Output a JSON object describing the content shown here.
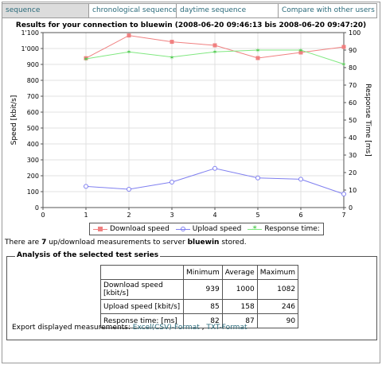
{
  "tabs": [
    {
      "label": "sequence",
      "active": true
    },
    {
      "label": "chronological sequence",
      "active": false
    },
    {
      "label": "daytime sequence",
      "active": false
    },
    {
      "label": "Compare with other users",
      "active": false
    }
  ],
  "chart_data": {
    "type": "line",
    "title": "Results for your connection to bluewin (2008-06-20 09:46:13 bis 2008-06-20 09:47:20)",
    "xlabel": "",
    "ylabel": "Speed [kbit/s]",
    "y2label": "Response Time [ms]",
    "x": [
      1,
      2,
      3,
      4,
      5,
      6,
      7
    ],
    "xlim": [
      0,
      7
    ],
    "ylim": [
      0,
      1100
    ],
    "y2lim": [
      0,
      100
    ],
    "xticks": [
      "0",
      "1",
      "2",
      "3",
      "4",
      "5",
      "6",
      "7"
    ],
    "yticks": [
      "0",
      "100",
      "200",
      "300",
      "400",
      "500",
      "600",
      "700",
      "800",
      "900",
      "1'000",
      "1'100"
    ],
    "y2ticks": [
      "0",
      "10",
      "20",
      "30",
      "40",
      "50",
      "60",
      "70",
      "80",
      "90",
      "100"
    ],
    "grid": true,
    "legend_position": "bottom",
    "series": [
      {
        "name": "Download speed",
        "axis": "left",
        "color": "#f08080",
        "marker": "square",
        "values": [
          939,
          1082,
          1042,
          1020,
          940,
          975,
          1010
        ]
      },
      {
        "name": "Upload speed",
        "axis": "left",
        "color": "#8080f0",
        "marker": "circle",
        "values": [
          133,
          115,
          160,
          246,
          186,
          178,
          85
        ]
      },
      {
        "name": "Response time:",
        "axis": "right",
        "color": "#80e880",
        "marker": "triangle",
        "values": [
          85,
          89,
          86,
          89,
          90,
          90,
          82
        ]
      }
    ]
  },
  "info": {
    "prefix": "There are ",
    "count": "7",
    "middle": " up/download measurements to server ",
    "server": "bluewin",
    "suffix": " stored."
  },
  "analysis": {
    "title": "Analysis of the selected test series",
    "headers": [
      "",
      "Minimum",
      "Average",
      "Maximum"
    ],
    "rows": [
      {
        "label": "Download speed [kbit/s]",
        "min": "939",
        "avg": "1000",
        "max": "1082"
      },
      {
        "label": "Upload speed [kbit/s]",
        "min": "85",
        "avg": "158",
        "max": "246"
      },
      {
        "label": "Response time: [ms]",
        "min": "82",
        "avg": "87",
        "max": "90"
      }
    ],
    "export_label": "Export displayed measurements: ",
    "export_csv": "Excel(CSV)-Format",
    "export_sep": " , ",
    "export_txt": "TXT-Format"
  }
}
